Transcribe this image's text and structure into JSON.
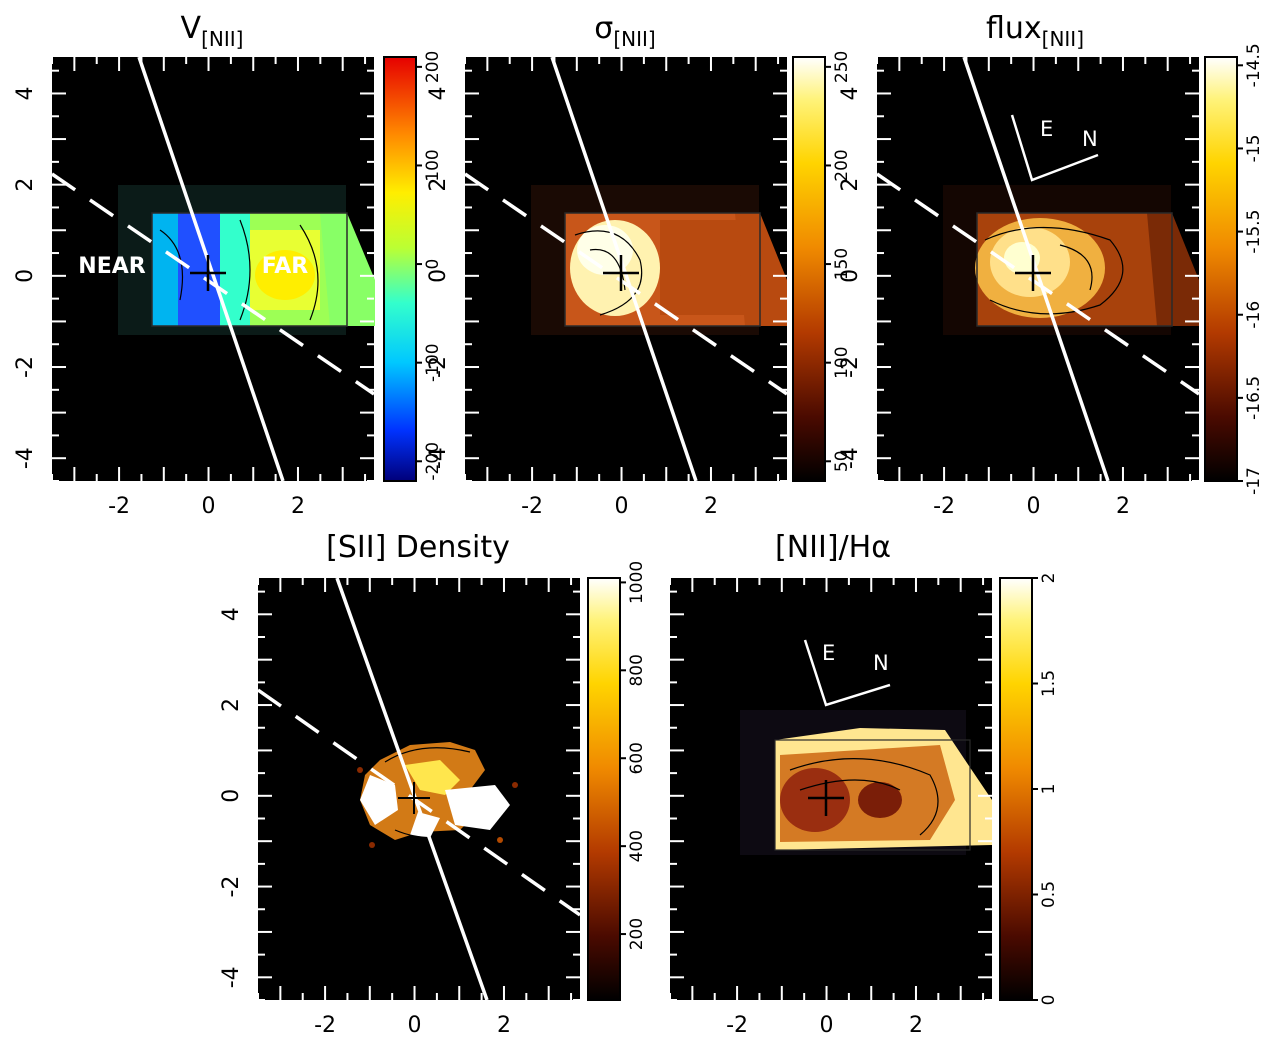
{
  "chart_data": [
    {
      "type": "heatmap",
      "title_main": "V",
      "title_sub": "[NII]",
      "xlim": [
        -3.5,
        3.7
      ],
      "ylim": [
        -4.5,
        4.8
      ],
      "x_ticks": [
        -2,
        0,
        2
      ],
      "y_ticks": [
        -4,
        -2,
        0,
        2,
        4
      ],
      "colorbar": {
        "range": [
          -220,
          210
        ],
        "ticks": [
          -200,
          -100,
          0,
          100,
          200
        ],
        "colormap": "rainbow"
      },
      "labels": [
        "NEAR",
        "FAR"
      ],
      "compass": []
    },
    {
      "type": "heatmap",
      "title_main": "σ",
      "title_sub": "[NII]",
      "xlim": [
        -3.5,
        3.7
      ],
      "ylim": [
        -4.5,
        4.8
      ],
      "x_ticks": [
        -2,
        0,
        2
      ],
      "y_ticks": [
        -4,
        -2,
        0,
        2,
        4
      ],
      "colorbar": {
        "range": [
          40,
          255
        ],
        "ticks": [
          50,
          100,
          150,
          200,
          250
        ],
        "colormap": "heat"
      },
      "labels": [],
      "compass": []
    },
    {
      "type": "heatmap",
      "title_main": "flux",
      "title_sub": "[NII]",
      "xlim": [
        -3.5,
        3.7
      ],
      "ylim": [
        -4.5,
        4.8
      ],
      "x_ticks": [
        -2,
        0,
        2
      ],
      "y_ticks": [
        -4,
        -2,
        0,
        2,
        4
      ],
      "colorbar": {
        "range": [
          -17,
          -14.45
        ],
        "ticks": [
          -17,
          -16.5,
          -16,
          -15.5,
          -15,
          -14.5
        ],
        "colormap": "heat"
      },
      "labels": [],
      "compass": [
        "E",
        "N"
      ]
    },
    {
      "type": "heatmap",
      "title_main": "[SII]  Density",
      "title_sub": "",
      "xlim": [
        -3.5,
        3.7
      ],
      "ylim": [
        -4.5,
        4.8
      ],
      "x_ticks": [
        -2,
        0,
        2
      ],
      "y_ticks": [
        -4,
        -2,
        0,
        2,
        4
      ],
      "colorbar": {
        "range": [
          50,
          1010
        ],
        "ticks": [
          200,
          400,
          600,
          800,
          1000
        ],
        "colormap": "heat"
      },
      "labels": [],
      "compass": []
    },
    {
      "type": "heatmap",
      "title_main": "[NII]/Hα",
      "title_sub": "",
      "xlim": [
        -3.5,
        3.7
      ],
      "ylim": [
        -4.5,
        4.8
      ],
      "x_ticks": [
        -2,
        0,
        2
      ],
      "y_ticks": [],
      "colorbar": {
        "range": [
          0,
          2
        ],
        "ticks": [
          0,
          0.5,
          1,
          1.5,
          2
        ],
        "colormap": "heat"
      },
      "labels": [],
      "compass": [
        "E",
        "N"
      ]
    }
  ]
}
